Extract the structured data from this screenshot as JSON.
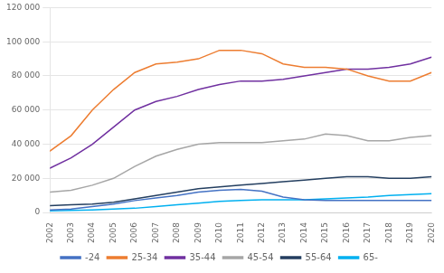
{
  "chart_data": {
    "type": "line",
    "x": [
      2002,
      2003,
      2004,
      2005,
      2006,
      2007,
      2008,
      2009,
      2010,
      2011,
      2012,
      2013,
      2014,
      2015,
      2016,
      2017,
      2018,
      2019,
      2020
    ],
    "series": [
      {
        "name": "-24",
        "color": "#4472c4",
        "values": [
          1500,
          2000,
          3500,
          5000,
          7000,
          8500,
          10000,
          12000,
          13000,
          13500,
          12500,
          9000,
          7500,
          7000,
          7000,
          7000,
          7000,
          7000,
          7000
        ]
      },
      {
        "name": "25-34",
        "color": "#ed7d31",
        "values": [
          36000,
          45000,
          60000,
          72000,
          82000,
          87000,
          88000,
          90000,
          95000,
          95000,
          93000,
          87000,
          85000,
          85000,
          84000,
          80000,
          77000,
          77000,
          82000
        ]
      },
      {
        "name": "35-44",
        "color": "#7030a0",
        "values": [
          26000,
          32000,
          40000,
          50000,
          60000,
          65000,
          68000,
          72000,
          75000,
          77000,
          77000,
          78000,
          80000,
          82000,
          84000,
          84000,
          85000,
          87000,
          91000
        ]
      },
      {
        "name": "45-54",
        "color": "#a6a6a6",
        "values": [
          12000,
          13000,
          16000,
          20000,
          27000,
          33000,
          37000,
          40000,
          41000,
          41000,
          41000,
          42000,
          43000,
          46000,
          45000,
          42000,
          42000,
          44000,
          45000
        ]
      },
      {
        "name": "55-64",
        "color": "#243f60",
        "values": [
          4000,
          4500,
          5000,
          6000,
          8000,
          10000,
          12000,
          14000,
          15000,
          16000,
          17000,
          18000,
          19000,
          20000,
          21000,
          21000,
          20000,
          20000,
          21000
        ]
      },
      {
        "name": "65-",
        "color": "#00b0f0",
        "values": [
          1000,
          1200,
          1500,
          2000,
          2500,
          3500,
          4500,
          5500,
          6500,
          7000,
          7500,
          7500,
          7500,
          8000,
          8500,
          9000,
          10000,
          10500,
          11000
        ]
      }
    ],
    "xlim": [
      2002,
      2020
    ],
    "xticks": [
      2002,
      2003,
      2004,
      2005,
      2006,
      2007,
      2008,
      2009,
      2010,
      2011,
      2012,
      2013,
      2014,
      2015,
      2016,
      2017,
      2018,
      2019,
      2020
    ],
    "ylim": [
      0,
      120000
    ],
    "yticks": [
      0,
      {
        "value": 20000,
        "label": "20 000"
      },
      {
        "value": 40000,
        "label": "40 000"
      },
      {
        "value": 60000,
        "label": "60 000"
      },
      {
        "value": 80000,
        "label": "80 000"
      },
      {
        "value": 100000,
        "label": "100 000"
      },
      {
        "value": 120000,
        "label": "120 000"
      }
    ],
    "grid": "y",
    "legend": "bottom"
  }
}
